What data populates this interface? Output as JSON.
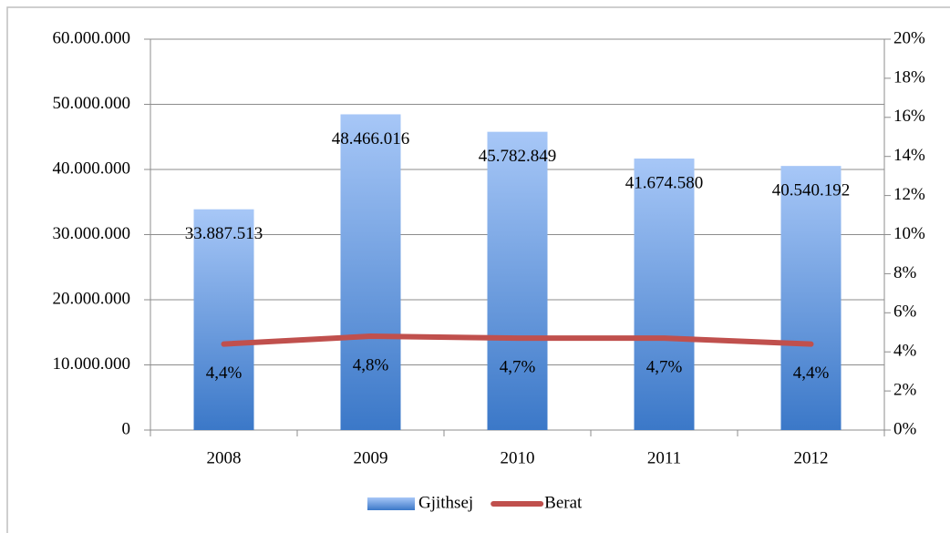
{
  "chart_data": {
    "type": "bar_line",
    "categories": [
      "2008",
      "2009",
      "2010",
      "2011",
      "2012"
    ],
    "series": [
      {
        "name": "Gjithsej",
        "type": "bar",
        "color": "#4a86d6",
        "values": [
          33887513,
          48466016,
          45782849,
          41674580,
          40540192
        ],
        "value_labels": [
          "33.887.513",
          "48.466.016",
          "45.782.849",
          "41.674.580",
          "40.540.192"
        ]
      },
      {
        "name": "Berat",
        "type": "line",
        "axis": "y2",
        "color": "#c0504d",
        "values": [
          4.4,
          4.8,
          4.7,
          4.7,
          4.4
        ],
        "value_labels": [
          "4,4%",
          "4,8%",
          "4,7%",
          "4,7%",
          "4,4%"
        ]
      }
    ],
    "ylim": [
      0,
      60000000
    ],
    "yticks": [
      0,
      {
        "value": 10000000,
        "label": "10.000.000"
      },
      {
        "value": 20000000,
        "label": "20.000.000"
      },
      {
        "value": 30000000,
        "label": "30.000.000"
      },
      {
        "value": 40000000,
        "label": "40.000.000"
      },
      {
        "value": 50000000,
        "label": "50.000.000"
      },
      {
        "value": 60000000,
        "label": "60.000.000"
      }
    ],
    "y2lim": [
      0,
      20
    ],
    "y2ticks": [
      {
        "value": 0,
        "label": "0%"
      },
      {
        "value": 2,
        "label": "2%"
      },
      {
        "value": 4,
        "label": "4%"
      },
      {
        "value": 6,
        "label": "6%"
      },
      {
        "value": 8,
        "label": "8%"
      },
      {
        "value": 10,
        "label": "10%"
      },
      {
        "value": 12,
        "label": "12%"
      },
      {
        "value": 14,
        "label": "14%"
      },
      {
        "value": 16,
        "label": "16%"
      },
      {
        "value": 18,
        "label": "18%"
      },
      {
        "value": 20,
        "label": "20%"
      }
    ],
    "grid": true,
    "legend": "bottom"
  }
}
